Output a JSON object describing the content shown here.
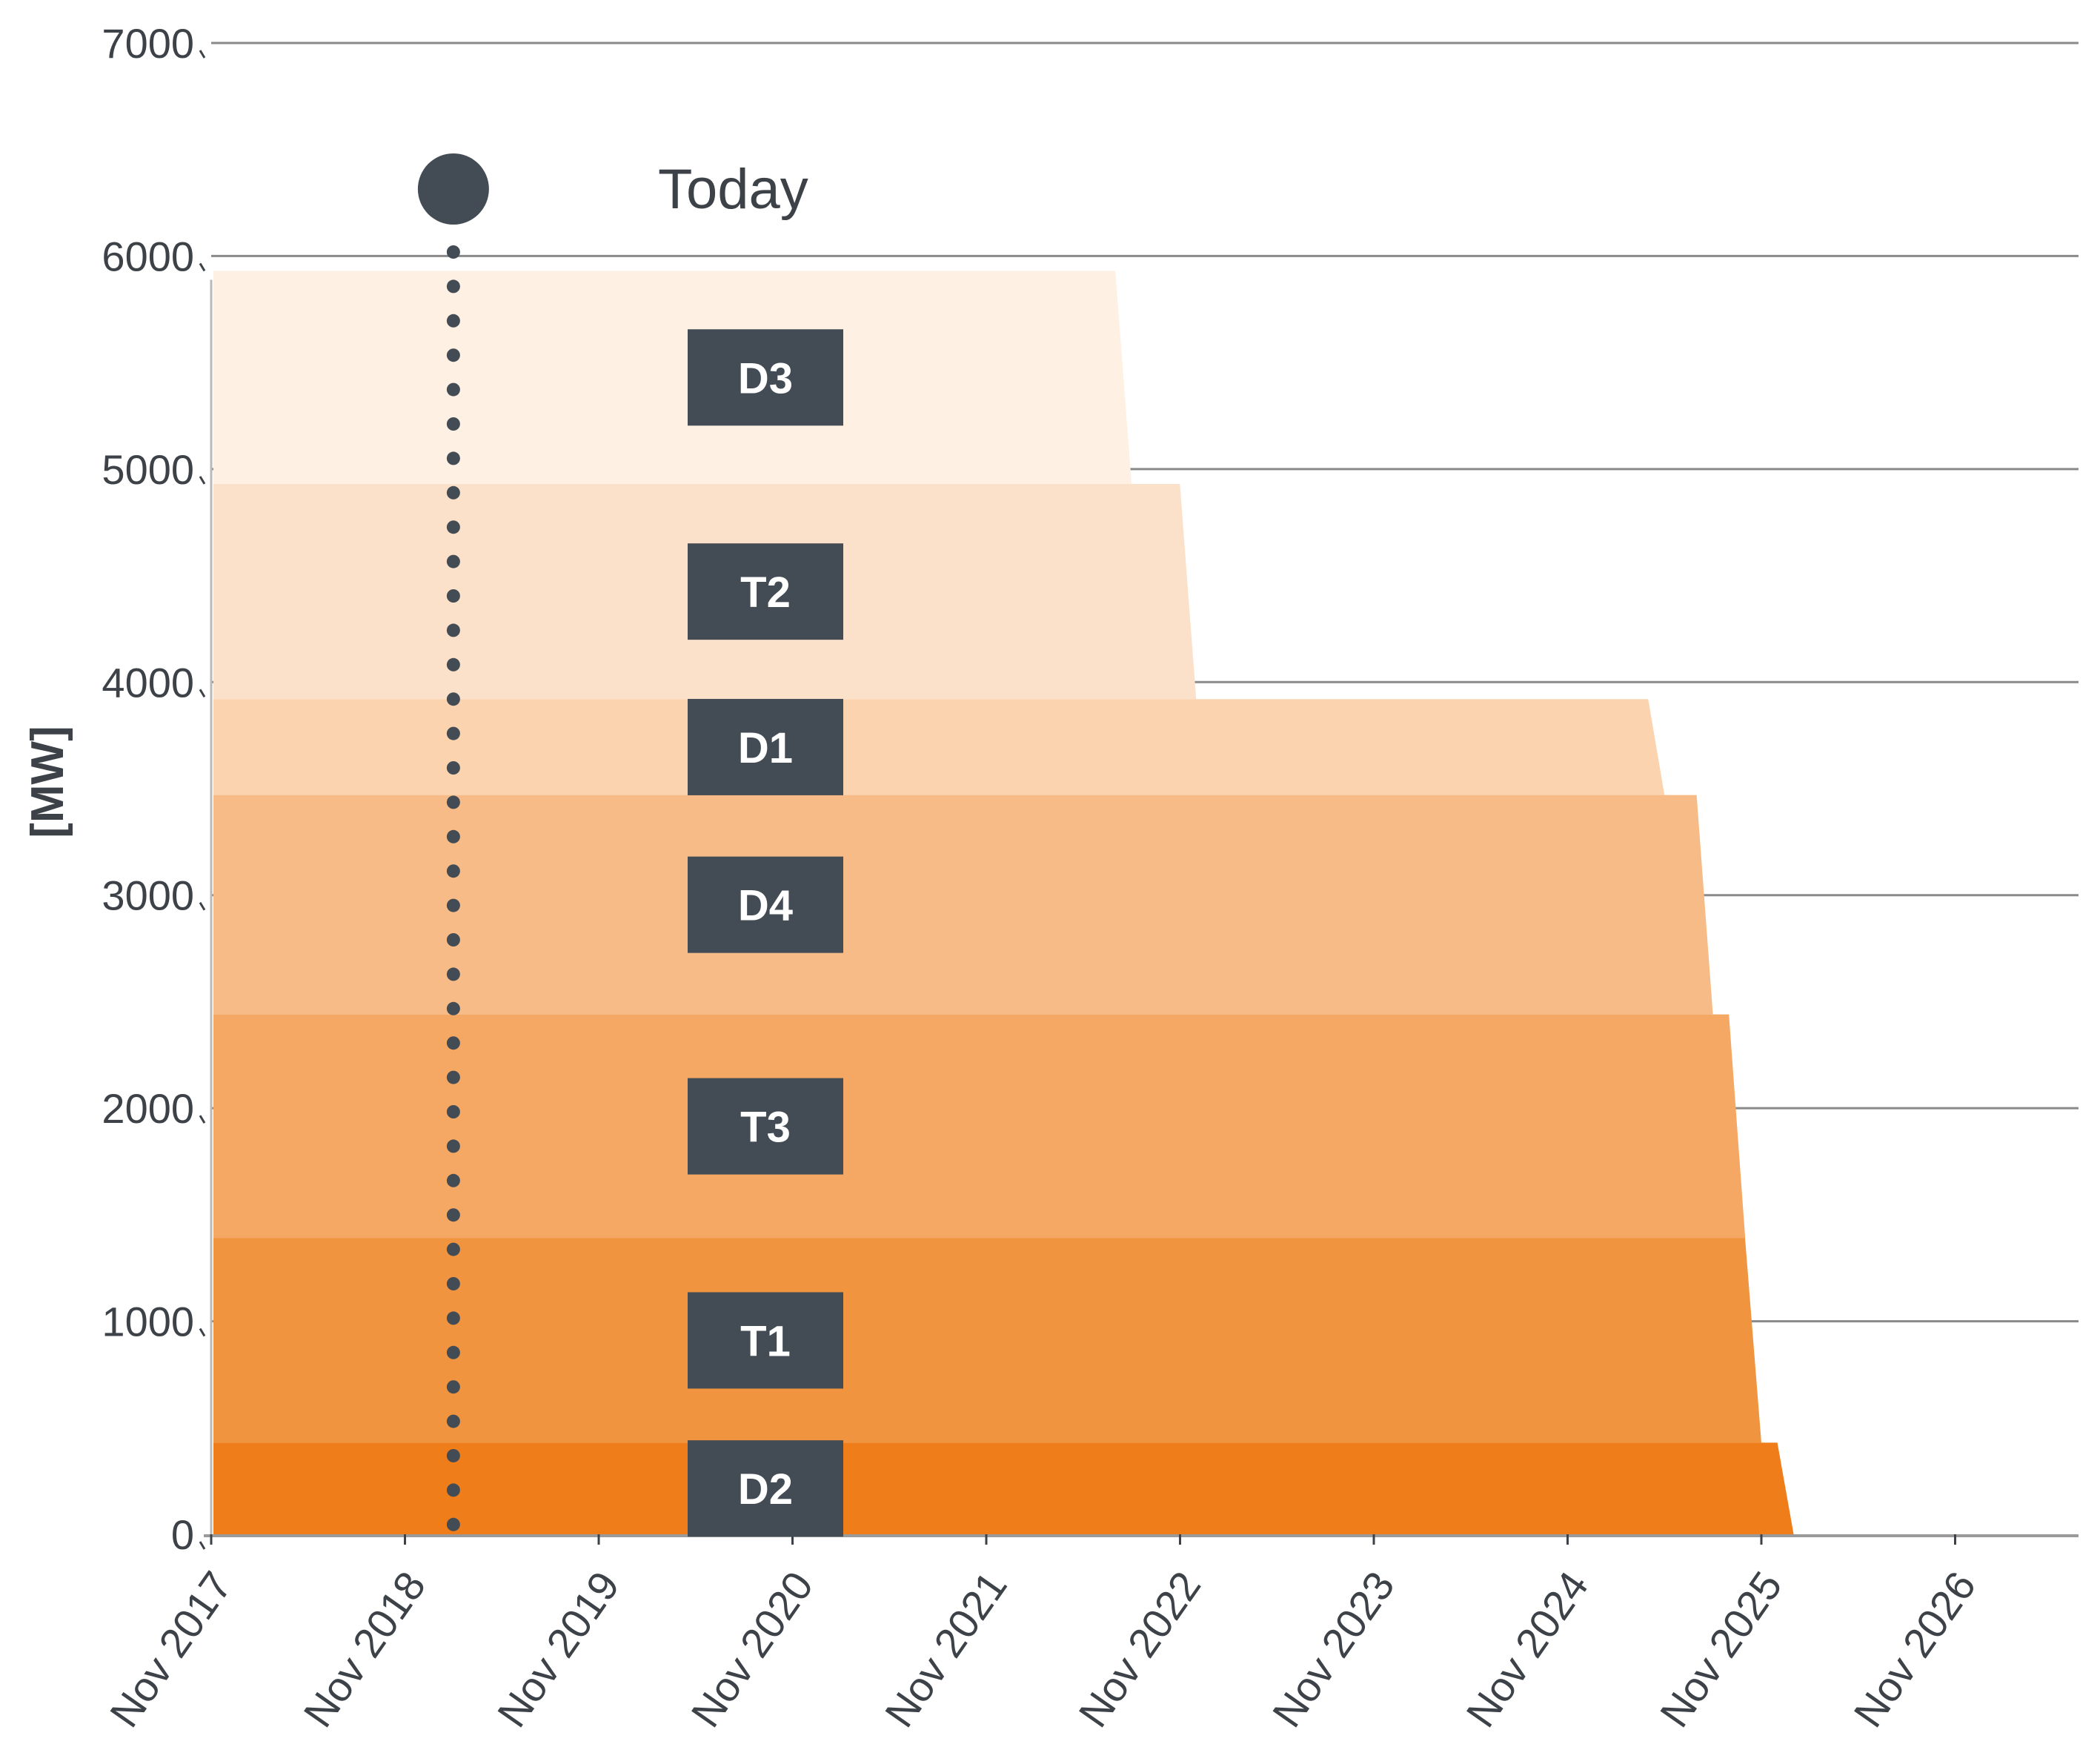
{
  "chart_data": {
    "type": "area",
    "ylabel": "[MW]",
    "xlabel": "",
    "ylim": [
      0,
      7000
    ],
    "y_ticks": [
      "0",
      "1000",
      "2000",
      "3000",
      "4000",
      "5000",
      "6000",
      "7000"
    ],
    "x_ticks": [
      "Nov 2017",
      "Nov 2018",
      "Nov 2019",
      "Nov 2020",
      "Nov 2021",
      "Nov 2022",
      "Nov 2023",
      "Nov 2024",
      "Nov 2025",
      "Nov 2026"
    ],
    "grid": true,
    "stacked": true,
    "today": {
      "label": "Today",
      "date": "2019-02"
    },
    "series": [
      {
        "name": "D2",
        "color": "#ee7d1a",
        "bottom": 0,
        "top": 430,
        "end": "2026-01"
      },
      {
        "name": "T1",
        "color": "#f19440",
        "bottom": 430,
        "top": 1390,
        "end": "2025-11"
      },
      {
        "name": "T3",
        "color": "#f5a864",
        "bottom": 1390,
        "top": 2440,
        "end": "2025-10"
      },
      {
        "name": "D4",
        "color": "#f7bb87",
        "bottom": 2440,
        "top": 3470,
        "end": "2025-08"
      },
      {
        "name": "D1",
        "color": "#fbd3ae",
        "bottom": 3470,
        "top": 3920,
        "end": "2025-05"
      },
      {
        "name": "T2",
        "color": "#fce1ca",
        "bottom": 3920,
        "top": 4930,
        "end": "2022-12"
      },
      {
        "name": "D3",
        "color": "#fef0e2",
        "bottom": 4930,
        "top": 5930,
        "end": "2022-08"
      }
    ]
  },
  "colors": {
    "grid": "#8a8a8a",
    "text": "#3d4248",
    "marker": "#434c54",
    "label_box": "#434c54"
  }
}
